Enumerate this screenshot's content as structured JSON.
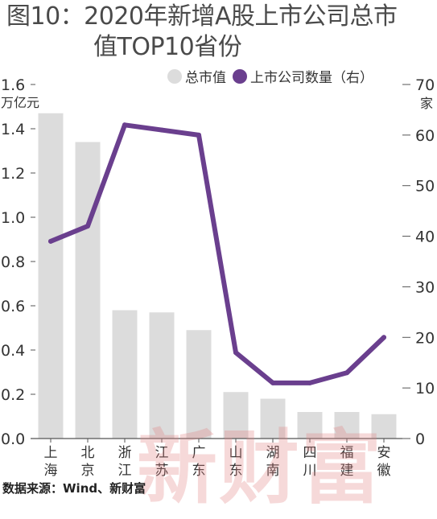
{
  "title_line1": "图10：2020年新增A股上市公司总市",
  "title_line2": "值TOP10省份",
  "source": "数据来源：Wind、新财富",
  "watermark": "新财富",
  "colors": {
    "bar": "#dcdcdc",
    "line": "#6a3f8e"
  },
  "chart_data": {
    "type": "bar",
    "categories": [
      "上海",
      "北京",
      "浙江",
      "江苏",
      "广东",
      "山东",
      "湖南",
      "四川",
      "福建",
      "安徽"
    ],
    "category_lines": [
      [
        "上",
        "海"
      ],
      [
        "北",
        "京"
      ],
      [
        "浙",
        "江"
      ],
      [
        "江",
        "苏"
      ],
      [
        "广",
        "东"
      ],
      [
        "山",
        "东"
      ],
      [
        "湖",
        "南"
      ],
      [
        "四",
        "川"
      ],
      [
        "福",
        "建"
      ],
      [
        "安",
        "徽"
      ]
    ],
    "series": [
      {
        "name": "总市值",
        "type": "bar",
        "axis": "left",
        "values": [
          1.47,
          1.34,
          0.58,
          0.57,
          0.49,
          0.21,
          0.18,
          0.12,
          0.12,
          0.11
        ]
      },
      {
        "name": "上市公司数量（右）",
        "type": "line",
        "axis": "right",
        "values": [
          39,
          42,
          62,
          61,
          60,
          17,
          11,
          11,
          13,
          20
        ]
      }
    ],
    "left_axis": {
      "unit": "万亿元",
      "ylim": [
        0,
        1.6
      ],
      "ticks": [
        "0.0",
        "0.2",
        "0.4",
        "0.6",
        "0.8",
        "1.0",
        "1.2",
        "1.4",
        "1.6"
      ]
    },
    "right_axis": {
      "unit": "家",
      "ylim": [
        0,
        70
      ],
      "ticks": [
        "0",
        "10",
        "20",
        "30",
        "40",
        "50",
        "60",
        "70"
      ]
    },
    "legend_position": "top-right",
    "grid": false
  }
}
